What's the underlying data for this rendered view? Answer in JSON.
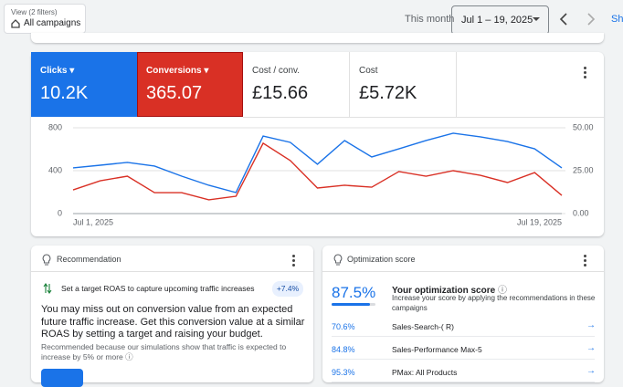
{
  "header": {
    "filter_label": "View (2 filters)",
    "filter_value": "All campaigns",
    "period_label": "This month",
    "date_range": "Jul 1 – 19, 2025",
    "share": "Sh"
  },
  "metrics": [
    {
      "value": "10.2K"
    },
    {
      "value": "365.07"
    },
    {
      "label": "Cost / conv.",
      "value": "£15.66"
    },
    {
      "label": "Cost",
      "value": "£5.72K"
    }
  ],
  "chart_data": {
    "type": "line",
    "categories": [
      "Jul 1, 2025",
      null,
      null,
      null,
      null,
      null,
      null,
      null,
      null,
      null,
      null,
      null,
      null,
      null,
      null,
      null,
      null,
      null,
      "Jul 19, 2025"
    ],
    "series": [
      {
        "name": "Clicks",
        "color": "#1a73e8",
        "values": [
          426,
          451,
          477,
          443,
          349,
          264,
          196,
          723,
          664,
          460,
          681,
          528,
          604,
          681,
          749,
          715,
          672,
          604,
          426
        ]
      },
      {
        "name": "Conversions",
        "color": "#d93025",
        "axis": "y2",
        "values": [
          13.8,
          19.1,
          21.8,
          12.2,
          12.2,
          8.0,
          10.1,
          41.0,
          30.9,
          14.9,
          16.5,
          15.4,
          24.5,
          21.8,
          25.0,
          22.3,
          18.1,
          23.9,
          10.6
        ]
      }
    ],
    "ylim": [
      0,
      800
    ],
    "yticks": [
      0,
      400,
      800
    ],
    "y2lim": [
      0,
      50
    ],
    "y2ticks": [
      {
        "value": 0,
        "label": "0.00"
      },
      {
        "value": 25,
        "label": "25.00"
      },
      {
        "value": 50,
        "label": "50.00"
      }
    ],
    "grid": true
  },
  "recommendation": {
    "title": "Recommendation",
    "item": "Set a target ROAS to capture upcoming traffic increases",
    "badge": "+7.4%",
    "body": "You may miss out on conversion value from an expected future traffic increase. Get this conversion value at a similar ROAS by setting a target and raising your budget.",
    "reason": "Recommended because our simulations show that traffic is expected to increase by 5% or more"
  },
  "optimization": {
    "title": "Optimization score",
    "score": {
      "value": 87.5,
      "label": "87.5%"
    },
    "heading": "Your optimization score",
    "description": "Increase your score by applying the recommendations in these campaigns",
    "campaigns": [
      {
        "score": "70.6%",
        "name": "Sales-Search-( R)"
      },
      {
        "score": "84.8%",
        "name": "Sales-Performance Max-5"
      },
      {
        "score": "95.3%",
        "name": "PMax: All Products"
      }
    ]
  }
}
